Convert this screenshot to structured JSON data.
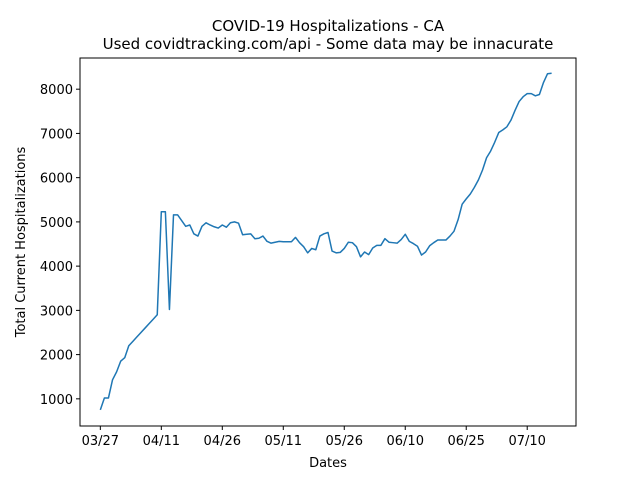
{
  "chart_data": {
    "type": "line",
    "title": "COVID-19 Hospitalizations - CA",
    "subtitle": "Used covidtracking.com/api - Some data may be innacurate",
    "x_label": "Dates",
    "y_label": "Total Current Hospitalizations",
    "color": "#1f77b4",
    "x": [
      "03/27",
      "03/28",
      "03/29",
      "03/30",
      "03/31",
      "04/01",
      "04/02",
      "04/03",
      "04/04",
      "04/05",
      "04/06",
      "04/07",
      "04/08",
      "04/09",
      "04/10",
      "04/11",
      "04/12",
      "04/13",
      "04/14",
      "04/15",
      "04/16",
      "04/17",
      "04/18",
      "04/19",
      "04/20",
      "04/21",
      "04/22",
      "04/23",
      "04/24",
      "04/25",
      "04/26",
      "04/27",
      "04/28",
      "04/29",
      "04/30",
      "05/01",
      "05/02",
      "05/03",
      "05/04",
      "05/05",
      "05/06",
      "05/07",
      "05/08",
      "05/09",
      "05/10",
      "05/11",
      "05/12",
      "05/13",
      "05/14",
      "05/15",
      "05/16",
      "05/17",
      "05/18",
      "05/19",
      "05/20",
      "05/21",
      "05/22",
      "05/23",
      "05/24",
      "05/25",
      "05/26",
      "05/27",
      "05/28",
      "05/29",
      "05/30",
      "05/31",
      "06/01",
      "06/02",
      "06/03",
      "06/04",
      "06/05",
      "06/06",
      "06/07",
      "06/08",
      "06/09",
      "06/10",
      "06/11",
      "06/12",
      "06/13",
      "06/14",
      "06/15",
      "06/16",
      "06/17",
      "06/18",
      "06/19",
      "06/20",
      "06/21",
      "06/22",
      "06/23",
      "06/24",
      "06/25",
      "06/26",
      "06/27",
      "06/28",
      "06/29",
      "06/30",
      "07/01",
      "07/02",
      "07/03",
      "07/04",
      "07/05",
      "07/06",
      "07/07",
      "07/08",
      "07/09",
      "07/10",
      "07/11",
      "07/12",
      "07/13",
      "07/14",
      "07/15",
      "07/16"
    ],
    "values": [
      750,
      1020,
      1020,
      1430,
      1610,
      1850,
      1930,
      2200,
      2300,
      2400,
      2500,
      2600,
      2700,
      2800,
      2900,
      5230,
      5230,
      3020,
      5160,
      5160,
      5030,
      4900,
      4930,
      4730,
      4680,
      4900,
      4980,
      4930,
      4890,
      4860,
      4930,
      4880,
      4980,
      5000,
      4970,
      4710,
      4720,
      4730,
      4620,
      4630,
      4680,
      4560,
      4520,
      4540,
      4560,
      4550,
      4550,
      4550,
      4650,
      4530,
      4440,
      4300,
      4400,
      4370,
      4680,
      4730,
      4760,
      4340,
      4300,
      4310,
      4400,
      4540,
      4530,
      4440,
      4210,
      4320,
      4260,
      4410,
      4470,
      4470,
      4620,
      4540,
      4530,
      4520,
      4600,
      4720,
      4560,
      4510,
      4450,
      4250,
      4320,
      4460,
      4530,
      4590,
      4590,
      4590,
      4680,
      4790,
      5050,
      5400,
      5520,
      5630,
      5780,
      5950,
      6170,
      6450,
      6600,
      6800,
      7020,
      7080,
      7150,
      7300,
      7520,
      7720,
      7830,
      7900,
      7900,
      7850,
      7880,
      8150,
      8350,
      8360
    ],
    "xlim": [
      "03/22",
      "07/22"
    ],
    "xticks": [
      "03/27",
      "04/11",
      "04/26",
      "05/11",
      "05/26",
      "06/10",
      "06/25",
      "07/10"
    ],
    "ylim": [
      386,
      8705
    ],
    "yticks": [
      1000,
      2000,
      3000,
      4000,
      5000,
      6000,
      7000,
      8000
    ]
  }
}
